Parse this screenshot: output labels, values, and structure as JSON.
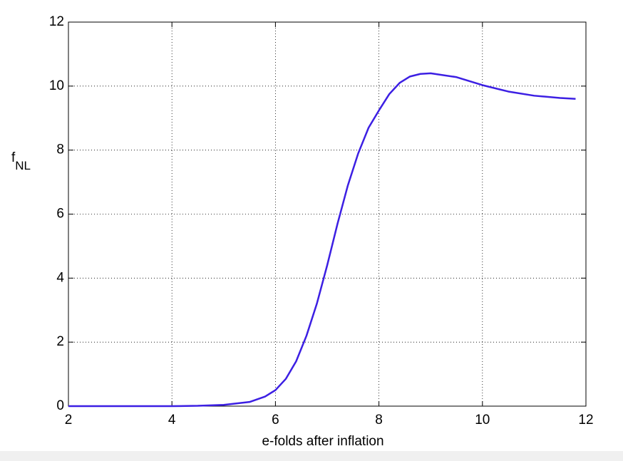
{
  "chart_data": {
    "type": "line",
    "xlabel": "e-folds after inflation",
    "ylabel": "f",
    "ylabel_subscript": "NL",
    "x": [
      2,
      3,
      4,
      4.5,
      5,
      5.5,
      5.8,
      6,
      6.2,
      6.4,
      6.6,
      6.8,
      7,
      7.2,
      7.4,
      7.6,
      7.8,
      8,
      8.2,
      8.4,
      8.6,
      8.8,
      9,
      9.5,
      10,
      10.5,
      11,
      11.5,
      11.8
    ],
    "series": [
      {
        "color": "#3c1fe3",
        "values": [
          0,
          0,
          0,
          0.01,
          0.04,
          0.13,
          0.3,
          0.5,
          0.85,
          1.4,
          2.2,
          3.2,
          4.4,
          5.7,
          6.9,
          7.9,
          8.7,
          9.24,
          9.75,
          10.1,
          10.3,
          10.38,
          10.4,
          10.28,
          10.03,
          9.83,
          9.7,
          9.63,
          9.6
        ]
      }
    ],
    "xlim": [
      2,
      12
    ],
    "xticks": [
      2,
      4,
      6,
      8,
      10,
      12
    ],
    "ylim": [
      0,
      12
    ],
    "yticks": [
      0,
      2,
      4,
      6,
      8,
      10,
      12
    ],
    "grid": true
  }
}
